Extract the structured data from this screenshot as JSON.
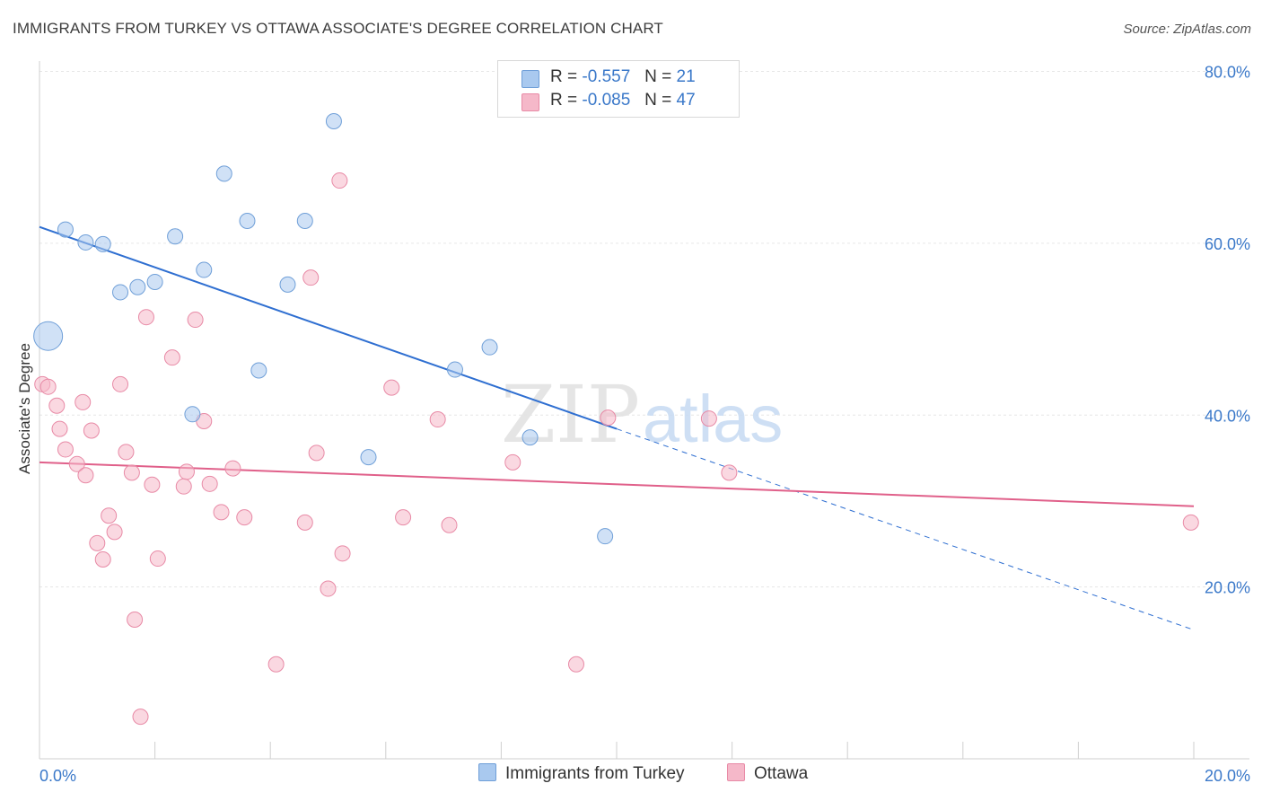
{
  "header": {
    "title": "IMMIGRANTS FROM TURKEY VS OTTAWA ASSOCIATE'S DEGREE CORRELATION CHART",
    "source": "Source: ZipAtlas.com"
  },
  "watermark": {
    "zip": "ZIP",
    "atlas": "atlas"
  },
  "legend": {
    "rows": [
      {
        "r_label": "R =",
        "r_value": "-0.557",
        "n_label": "N =",
        "n_value": "21",
        "color": "#a9c9ef"
      },
      {
        "r_label": "R =",
        "r_value": "-0.085",
        "n_label": "N =",
        "n_value": "47",
        "color": "#f5b8c9"
      }
    ]
  },
  "bottom_legend": {
    "items": [
      {
        "label": "Immigrants from Turkey",
        "color": "#a9c9ef"
      },
      {
        "label": "Ottawa",
        "color": "#f5b8c9"
      }
    ]
  },
  "chart_data": {
    "type": "scatter",
    "title": "IMMIGRANTS FROM TURKEY VS OTTAWA ASSOCIATE'S DEGREE CORRELATION CHART",
    "xlabel": "",
    "ylabel": "Associate's Degree",
    "xlim": [
      0,
      20
    ],
    "ylim": [
      0,
      82
    ],
    "x_tick_labels": [
      "0.0%",
      "20.0%"
    ],
    "y_ticks": [
      20,
      40,
      60,
      80
    ],
    "y_tick_labels": [
      "20.0%",
      "40.0%",
      "60.0%",
      "80.0%"
    ],
    "grid": true,
    "legend_position": "top-center",
    "series": [
      {
        "name": "Immigrants from Turkey",
        "color": "#a9c9ef",
        "stroke": "#6f9fd8",
        "points": [
          [
            0.15,
            49.2,
            "large"
          ],
          [
            0.45,
            61.6
          ],
          [
            0.8,
            60.1
          ],
          [
            1.1,
            59.9
          ],
          [
            1.4,
            54.3
          ],
          [
            1.7,
            54.9
          ],
          [
            2.0,
            55.5
          ],
          [
            2.35,
            60.8
          ],
          [
            2.85,
            56.9
          ],
          [
            3.2,
            68.1
          ],
          [
            3.6,
            62.6
          ],
          [
            3.8,
            45.2
          ],
          [
            4.3,
            55.2
          ],
          [
            4.6,
            62.6
          ],
          [
            5.1,
            74.2
          ],
          [
            5.7,
            35.1
          ],
          [
            7.2,
            45.3
          ],
          [
            7.8,
            47.9
          ],
          [
            8.5,
            37.4
          ],
          [
            2.65,
            40.1
          ],
          [
            9.8,
            25.9
          ]
        ],
        "trend": {
          "x0": 0,
          "y0": 61.9,
          "x1": 10.0,
          "y1": 38.4,
          "dash_x1": 20.0,
          "dash_y1": 15.0
        }
      },
      {
        "name": "Ottawa",
        "color": "#f5b8c9",
        "stroke": "#e88aa6",
        "points": [
          [
            0.05,
            43.6
          ],
          [
            0.15,
            43.3
          ],
          [
            0.3,
            41.1
          ],
          [
            0.35,
            38.4
          ],
          [
            0.45,
            36.0
          ],
          [
            0.65,
            34.3
          ],
          [
            0.75,
            41.5
          ],
          [
            0.8,
            33.0
          ],
          [
            0.9,
            38.2
          ],
          [
            1.0,
            25.1
          ],
          [
            1.1,
            23.2
          ],
          [
            1.2,
            28.3
          ],
          [
            1.3,
            26.4
          ],
          [
            1.4,
            43.6
          ],
          [
            1.5,
            35.7
          ],
          [
            1.6,
            33.3
          ],
          [
            1.65,
            16.2
          ],
          [
            1.75,
            4.9
          ],
          [
            1.85,
            51.4
          ],
          [
            1.95,
            31.9
          ],
          [
            2.05,
            23.3
          ],
          [
            2.3,
            46.7
          ],
          [
            2.5,
            31.7
          ],
          [
            2.55,
            33.4
          ],
          [
            2.7,
            51.1
          ],
          [
            2.85,
            39.3
          ],
          [
            2.95,
            32.0
          ],
          [
            3.15,
            28.7
          ],
          [
            3.35,
            33.8
          ],
          [
            3.55,
            28.1
          ],
          [
            4.1,
            11.0
          ],
          [
            4.6,
            27.5
          ],
          [
            4.7,
            56.0
          ],
          [
            4.8,
            35.6
          ],
          [
            5.0,
            19.8
          ],
          [
            5.2,
            67.3
          ],
          [
            5.25,
            23.9
          ],
          [
            6.1,
            43.2
          ],
          [
            6.3,
            28.1
          ],
          [
            6.9,
            39.5
          ],
          [
            7.1,
            27.2
          ],
          [
            8.2,
            34.5
          ],
          [
            9.3,
            11.0
          ],
          [
            9.85,
            39.7
          ],
          [
            11.6,
            39.6
          ],
          [
            11.95,
            33.3
          ],
          [
            19.95,
            27.5
          ]
        ],
        "trend": {
          "x0": 0,
          "y0": 34.5,
          "x1": 20.0,
          "y1": 29.4
        }
      }
    ]
  }
}
